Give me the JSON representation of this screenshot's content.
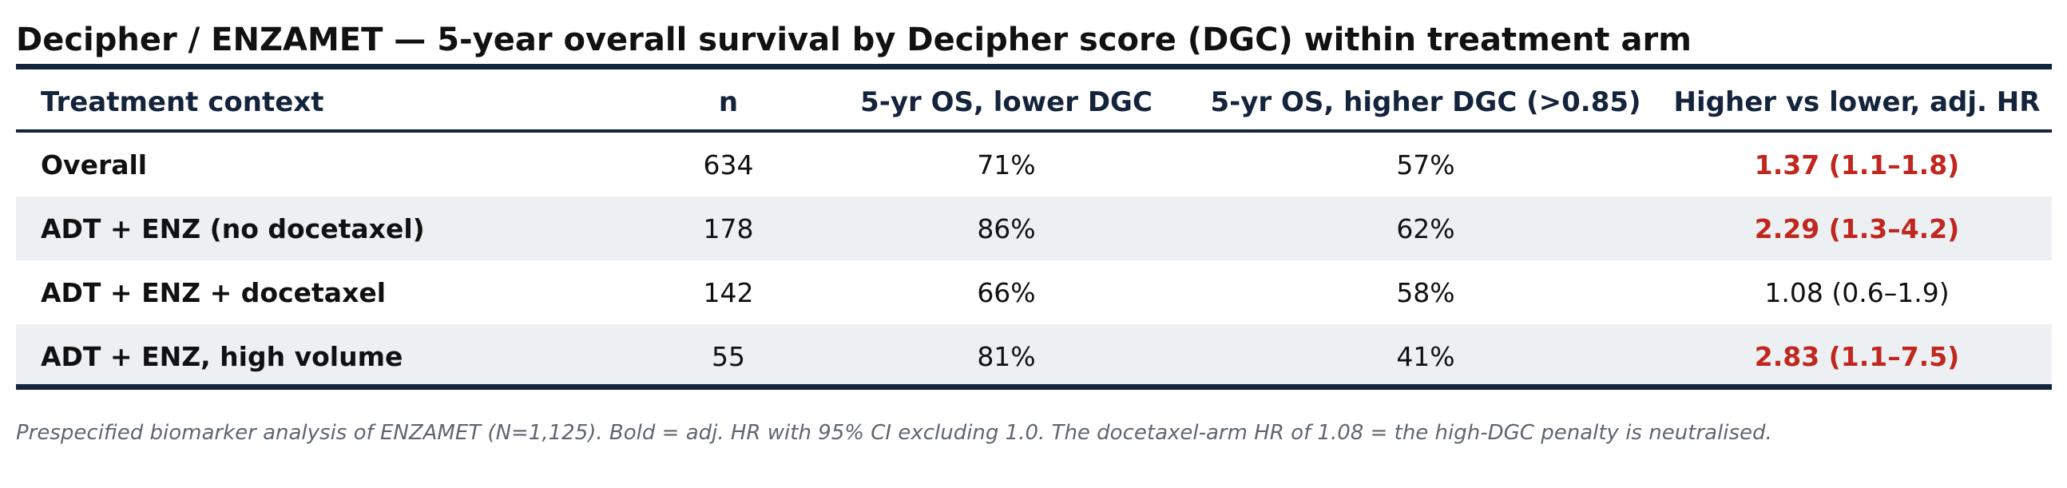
{
  "title": "Decipher / ENZAMET — 5-year overall survival by Decipher score (DGC) within treatment arm",
  "colors": {
    "rule": "#14243c",
    "header_text": "#14243c",
    "significant": "#c0271f",
    "shaded_row": "#edf0f3",
    "footnote": "#5f6670"
  },
  "chart_data": {
    "type": "table",
    "columns": [
      "Treatment context",
      "n",
      "5-yr OS, lower DGC",
      "5-yr OS, higher DGC (>0.85)",
      "Higher vs lower, adj. HR"
    ],
    "rows": [
      {
        "context": "Overall",
        "n": "634",
        "os_lower": "71%",
        "os_higher": "57%",
        "hr": "1.37 (1.1–1.8)",
        "significant": true
      },
      {
        "context": "ADT + ENZ (no docetaxel)",
        "n": "178",
        "os_lower": "86%",
        "os_higher": "62%",
        "hr": "2.29 (1.3–4.2)",
        "significant": true
      },
      {
        "context": "ADT + ENZ + docetaxel",
        "n": "142",
        "os_lower": "66%",
        "os_higher": "58%",
        "hr": "1.08 (0.6–1.9)",
        "significant": false
      },
      {
        "context": "ADT + ENZ, high volume",
        "n": "55",
        "os_lower": "81%",
        "os_higher": "41%",
        "hr": "2.83 (1.1–7.5)",
        "significant": true
      }
    ]
  },
  "footnote": "Prespecified biomarker analysis of ENZAMET (N=1,125). Bold = adj. HR with 95% CI excluding 1.0. The docetaxel-arm HR of 1.08 = the high-DGC penalty is neutralised."
}
